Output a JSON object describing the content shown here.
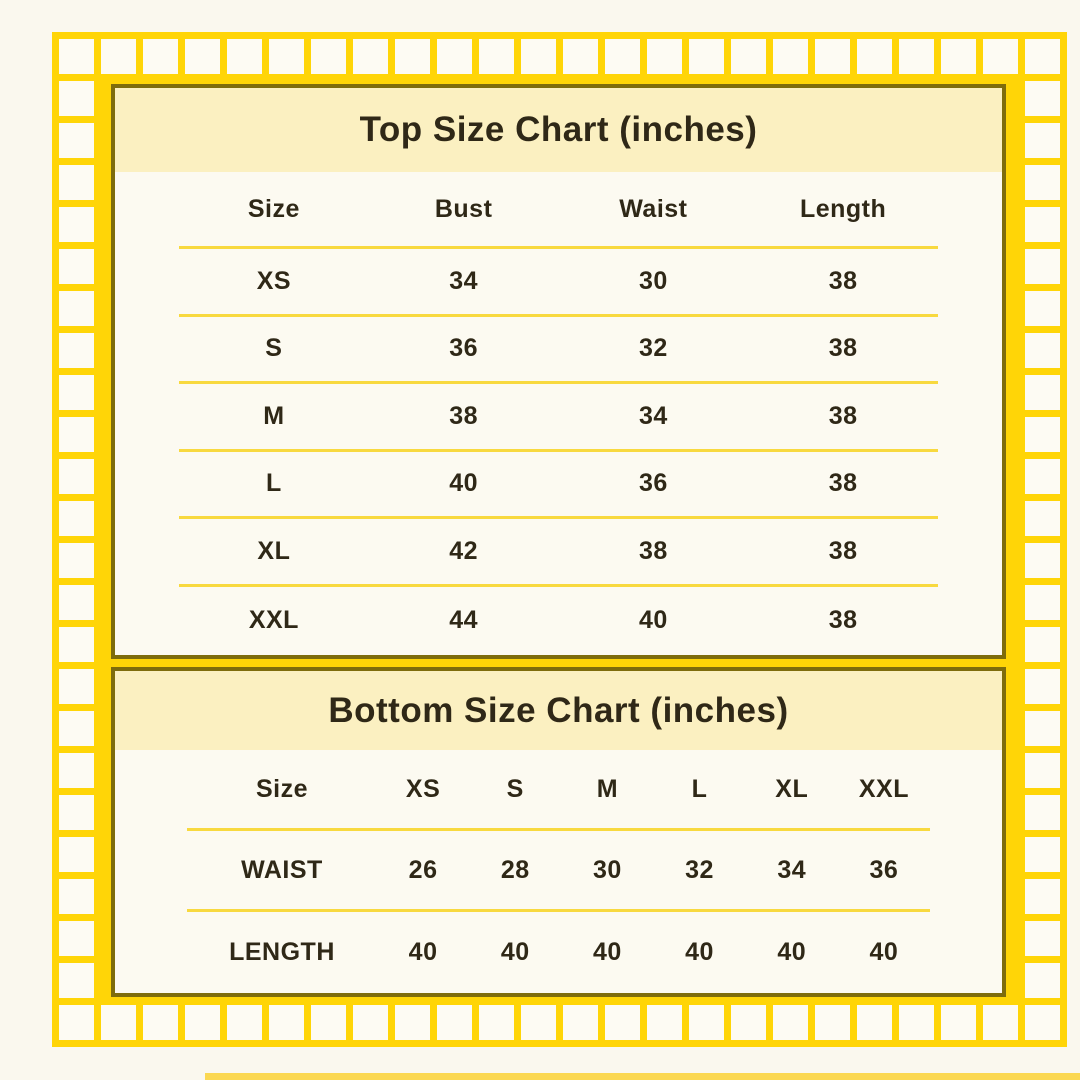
{
  "colors": {
    "page_bg": "#FAF8EE",
    "grid_yellow": "#FFD507",
    "tile_fill": "#FDFBF3",
    "panel_border_olive": "#7E6C0C",
    "panel_bg": "#FCFAF1",
    "title_band_bg": "#FBF0C1",
    "row_divider": "#F8D93F",
    "text": "#2F2817",
    "bottom_strip": "#FBD851"
  },
  "chart_data": [
    {
      "type": "table",
      "title": "Top Size Chart (inches)",
      "columns": [
        "Size",
        "Bust",
        "Waist",
        "Length"
      ],
      "rows": [
        [
          "XS",
          "34",
          "30",
          "38"
        ],
        [
          "S",
          "36",
          "32",
          "38"
        ],
        [
          "M",
          "38",
          "34",
          "38"
        ],
        [
          "L",
          "40",
          "36",
          "38"
        ],
        [
          "XL",
          "42",
          "38",
          "38"
        ],
        [
          "XXL",
          "44",
          "40",
          "38"
        ]
      ]
    },
    {
      "type": "table",
      "title": "Bottom Size Chart (inches)",
      "columns": [
        "Size",
        "XS",
        "S",
        "M",
        "L",
        "XL",
        "XXL"
      ],
      "rows": [
        [
          "WAIST",
          "26",
          "28",
          "30",
          "32",
          "34",
          "36"
        ],
        [
          "LENGTH",
          "40",
          "40",
          "40",
          "40",
          "40",
          "40"
        ]
      ]
    }
  ]
}
